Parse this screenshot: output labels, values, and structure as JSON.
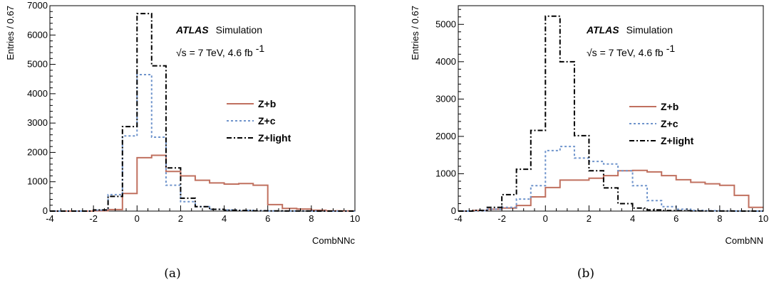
{
  "chart_data": [
    {
      "type": "step-histogram",
      "caption": "(a)",
      "xlabel": "CombNNc",
      "ylabel": "Entries / 0.67",
      "xlim": [
        -4,
        10
      ],
      "ylim": [
        0,
        7000
      ],
      "xticks": [
        "-4",
        "-2",
        "0",
        "2",
        "4",
        "6",
        "8",
        "10"
      ],
      "yticks": [
        "0",
        "1000",
        "2000",
        "3000",
        "4000",
        "5000",
        "6000",
        "7000"
      ],
      "annotation_brand": "ATLAS",
      "annotation_sim": "Simulation",
      "annotation_energy": "√s = 7 TeV, 4.6 fb",
      "annotation_lumi_sup": "-1",
      "legend_position": "right-middle",
      "bin_edges": [
        -4,
        -3.33,
        -2.67,
        -2,
        -1.33,
        -0.67,
        0,
        0.67,
        1.33,
        2,
        2.67,
        3.33,
        4,
        4.67,
        5.33,
        6,
        6.67,
        7.33,
        8,
        8.67,
        9.33,
        10
      ],
      "series": [
        {
          "name": "Z+b",
          "color": "#c0705f",
          "dash": "solid",
          "values": [
            0,
            0,
            0,
            10,
            50,
            600,
            1820,
            1900,
            1350,
            1200,
            1050,
            960,
            920,
            940,
            880,
            220,
            90,
            70,
            30,
            10,
            5
          ]
        },
        {
          "name": "Z+c",
          "color": "#6f94cc",
          "dash": "dotted",
          "values": [
            0,
            0,
            0,
            30,
            560,
            2560,
            4650,
            2520,
            880,
            320,
            150,
            60,
            40,
            25,
            15,
            5,
            3,
            2,
            2,
            0,
            0
          ]
        },
        {
          "name": "Z+light",
          "color": "#000000",
          "dash": "dashdot",
          "values": [
            0,
            0,
            0,
            40,
            500,
            2880,
            6730,
            4950,
            1470,
            440,
            150,
            60,
            30,
            20,
            10,
            5,
            3,
            2,
            0,
            0,
            0
          ]
        }
      ]
    },
    {
      "type": "step-histogram",
      "caption": "(b)",
      "xlabel": "CombNN",
      "ylabel": "Entries / 0.67",
      "xlim": [
        -4,
        10
      ],
      "ylim": [
        0,
        5500
      ],
      "xticks": [
        "-4",
        "-2",
        "0",
        "2",
        "4",
        "6",
        "8",
        "10"
      ],
      "yticks": [
        "0",
        "1000",
        "2000",
        "3000",
        "4000",
        "5000"
      ],
      "annotation_brand": "ATLAS",
      "annotation_sim": "Simulation",
      "annotation_energy": "√s = 7 TeV, 4.6 fb",
      "annotation_lumi_sup": "-1",
      "legend_position": "right-middle",
      "bin_edges": [
        -4,
        -3.33,
        -2.67,
        -2,
        -1.33,
        -0.67,
        0,
        0.67,
        1.33,
        2,
        2.67,
        3.33,
        4,
        4.67,
        5.33,
        6,
        6.67,
        7.33,
        8,
        8.67,
        9.33,
        10
      ],
      "series": [
        {
          "name": "Z+b",
          "color": "#c0705f",
          "dash": "solid",
          "values": [
            0,
            20,
            50,
            80,
            150,
            380,
            630,
            830,
            830,
            880,
            950,
            1080,
            1090,
            1050,
            950,
            840,
            770,
            730,
            690,
            420,
            100
          ]
        },
        {
          "name": "Z+c",
          "color": "#6f94cc",
          "dash": "dotted",
          "values": [
            0,
            10,
            50,
            100,
            320,
            680,
            1620,
            1730,
            1420,
            1330,
            1260,
            1080,
            680,
            280,
            120,
            50,
            20,
            10,
            5,
            2,
            0
          ]
        },
        {
          "name": "Z+light",
          "color": "#000000",
          "dash": "dashdot",
          "values": [
            0,
            20,
            100,
            440,
            1120,
            2160,
            5220,
            4000,
            2020,
            1080,
            620,
            200,
            80,
            30,
            15,
            10,
            5,
            3,
            2,
            0,
            0
          ]
        }
      ]
    }
  ]
}
